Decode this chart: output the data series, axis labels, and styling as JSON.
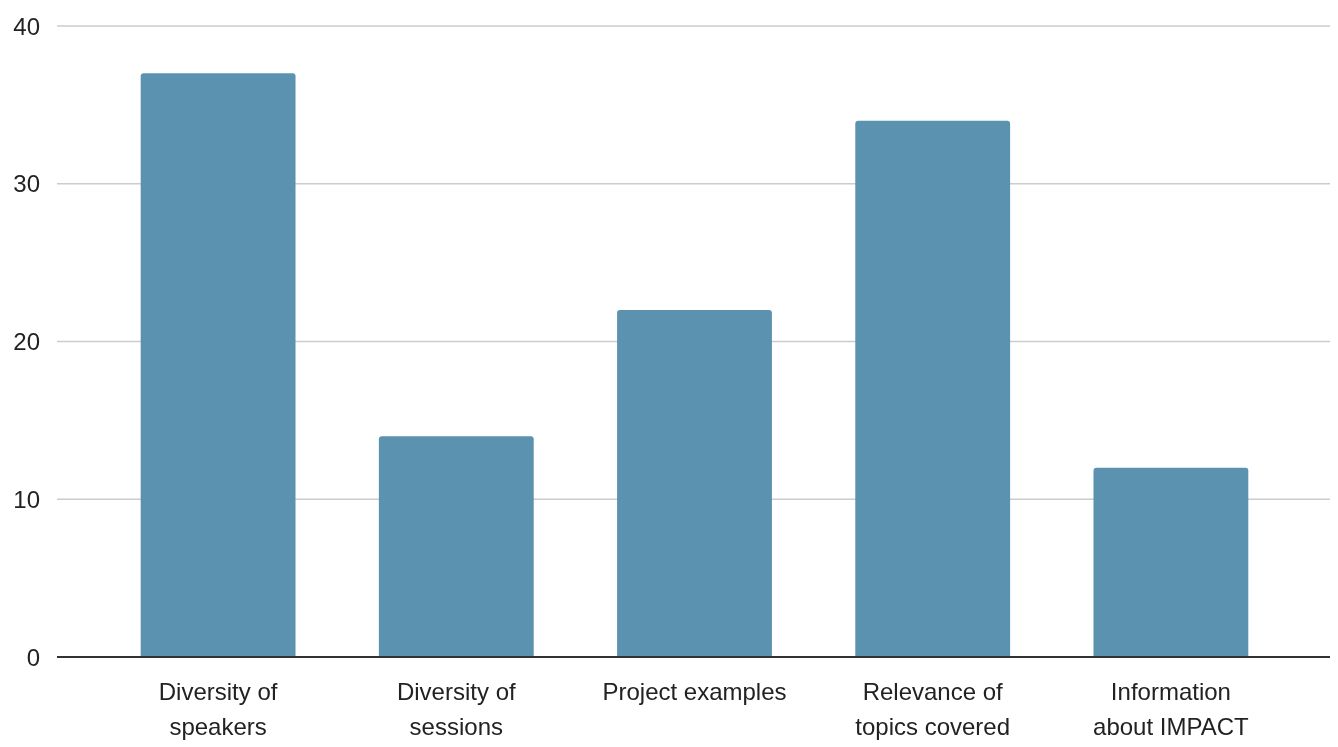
{
  "chart_data": {
    "type": "bar",
    "categories": [
      "Diversity of speakers",
      "Diversity of sessions",
      "Project examples",
      "Relevance of topics covered",
      "Information about IMPACT"
    ],
    "values": [
      37,
      14,
      22,
      34,
      12
    ],
    "color": "#5a92af",
    "ylim": [
      0,
      40
    ],
    "yticks": [
      0,
      10,
      20,
      30,
      40
    ],
    "grid": "y"
  }
}
